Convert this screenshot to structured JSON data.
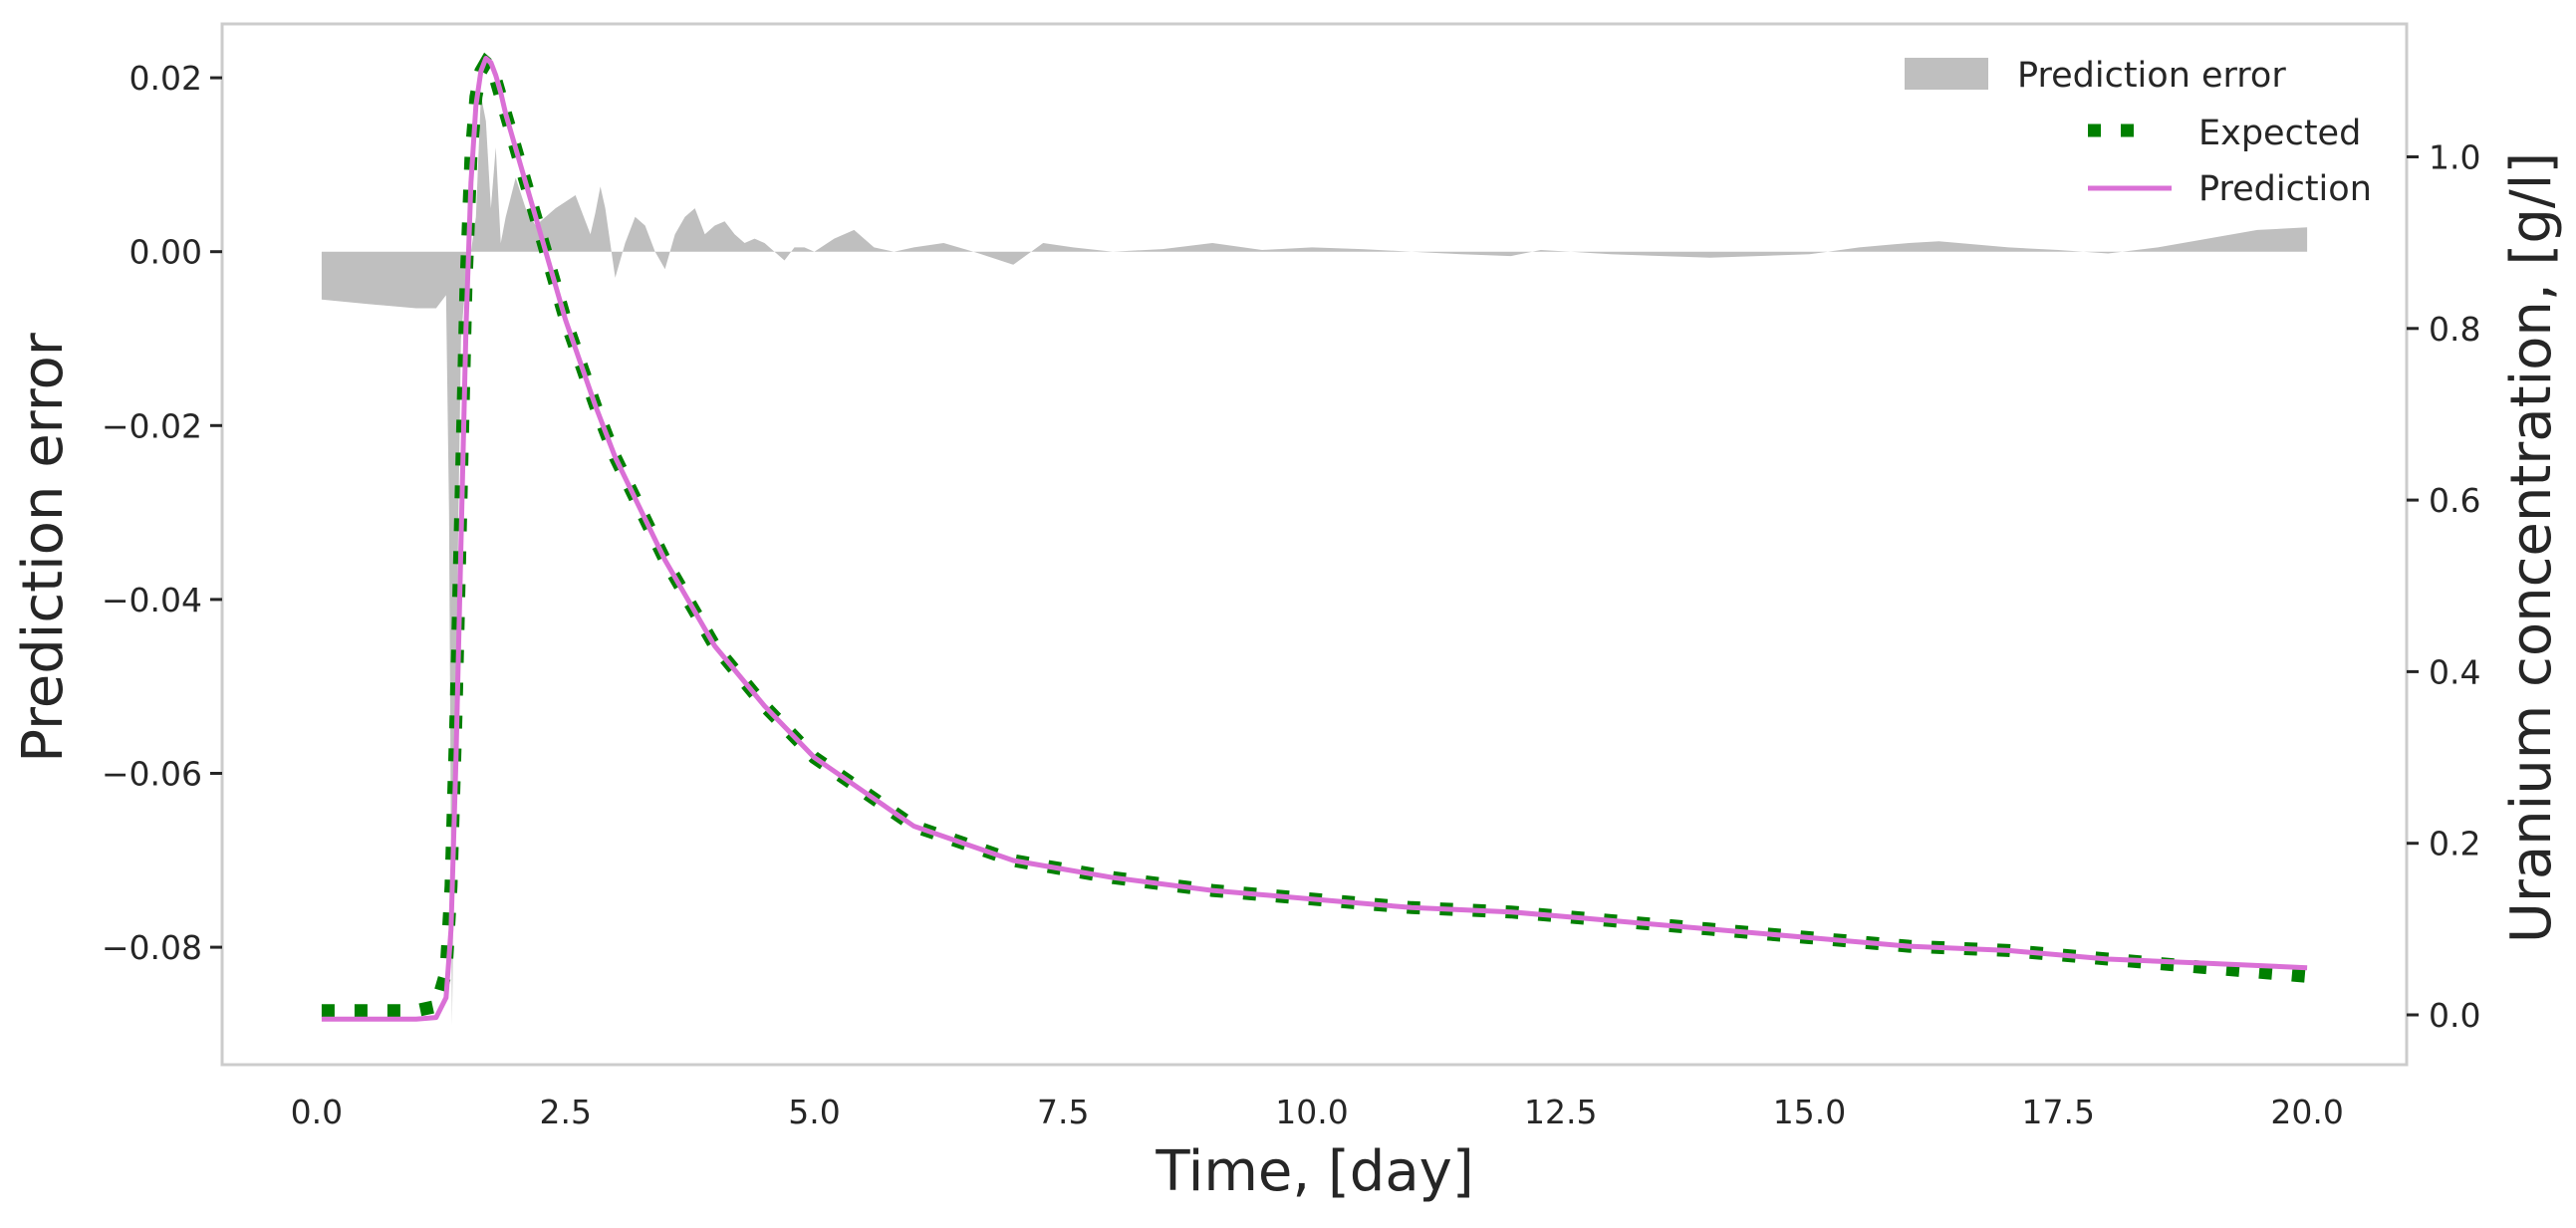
{
  "chart_data": {
    "type": "line",
    "title": "",
    "xlabel": "Time, [day]",
    "ylabel_left": "Prediction error",
    "ylabel_right": "Uranium concentration, [g/l]",
    "xlim": [
      -0.95,
      21.0
    ],
    "ylim_left": [
      -0.0935,
      0.0262
    ],
    "ylim_right": [
      -0.058,
      1.155
    ],
    "grid": false,
    "legend_position": "top-right",
    "x_ticks": [
      "0.0",
      "2.5",
      "5.0",
      "7.5",
      "10.0",
      "12.5",
      "15.0",
      "17.5",
      "20.0"
    ],
    "x_tick_values": [
      0,
      2.5,
      5,
      7.5,
      10,
      12.5,
      15,
      17.5,
      20
    ],
    "y_left_ticks": [
      "−0.08",
      "−0.06",
      "−0.04",
      "−0.02",
      "0.00",
      "0.02"
    ],
    "y_left_tick_values": [
      -0.08,
      -0.06,
      -0.04,
      -0.02,
      0.0,
      0.02
    ],
    "y_right_ticks": [
      "0.0",
      "0.2",
      "0.4",
      "0.6",
      "0.8",
      "1.0"
    ],
    "y_right_tick_values": [
      0.0,
      0.2,
      0.4,
      0.6,
      0.8,
      1.0
    ],
    "legend": [
      {
        "name": "Prediction error",
        "style": "fill",
        "color": "#bfbfbf"
      },
      {
        "name": "Expected",
        "style": "dotted",
        "color": "#008000"
      },
      {
        "name": "Prediction",
        "style": "line",
        "color": "#da70d6"
      }
    ],
    "series": [
      {
        "name": "Prediction error",
        "axis": "left",
        "kind": "area",
        "color": "#bfbfbf",
        "x": [
          0.05,
          0.5,
          1.0,
          1.2,
          1.3,
          1.33,
          1.36,
          1.4,
          1.45,
          1.5,
          1.55,
          1.6,
          1.65,
          1.7,
          1.75,
          1.8,
          1.85,
          1.9,
          2.0,
          2.1,
          2.2,
          2.4,
          2.6,
          2.75,
          2.8,
          2.85,
          2.9,
          3.0,
          3.1,
          3.2,
          3.3,
          3.4,
          3.5,
          3.6,
          3.7,
          3.8,
          3.9,
          4.0,
          4.1,
          4.2,
          4.3,
          4.4,
          4.5,
          4.6,
          4.7,
          4.8,
          4.9,
          5.0,
          5.2,
          5.4,
          5.6,
          5.8,
          6.0,
          6.3,
          6.6,
          7.0,
          7.3,
          7.6,
          8.0,
          8.5,
          9.0,
          9.5,
          10.0,
          10.5,
          11.0,
          11.5,
          12.0,
          12.3,
          12.6,
          13.0,
          14.0,
          15.0,
          15.5,
          16.0,
          16.3,
          16.7,
          17.0,
          17.5,
          18.0,
          18.5,
          19.0,
          19.5,
          20.0
        ],
        "y": [
          -0.0055,
          -0.006,
          -0.0065,
          -0.0065,
          -0.005,
          -0.03,
          -0.089,
          -0.05,
          -0.01,
          -0.003,
          0.0,
          0.004,
          0.018,
          0.015,
          0.005,
          0.012,
          0.001,
          0.004,
          0.0085,
          0.005,
          0.003,
          0.005,
          0.0065,
          0.002,
          0.0045,
          0.0075,
          0.005,
          -0.003,
          0.001,
          0.004,
          0.003,
          0.0,
          -0.002,
          0.002,
          0.004,
          0.005,
          0.002,
          0.003,
          0.0035,
          0.002,
          0.001,
          0.0015,
          0.001,
          0.0,
          -0.001,
          0.0005,
          0.0005,
          0.0,
          0.0015,
          0.0025,
          0.0005,
          0.0,
          0.0005,
          0.001,
          0.0,
          -0.0015,
          0.001,
          0.0005,
          0.0,
          0.0003,
          0.001,
          0.0002,
          0.0005,
          0.0003,
          0.0,
          -0.0003,
          -0.0005,
          0.0002,
          0.0,
          -0.0003,
          -0.0007,
          -0.0003,
          0.0005,
          0.001,
          0.0012,
          0.0008,
          0.0005,
          0.0002,
          -0.0002,
          0.0005,
          0.0015,
          0.0025,
          0.0028
        ]
      },
      {
        "name": "Expected",
        "axis": "right",
        "kind": "dotted-line",
        "color": "#008000",
        "x": [
          0.05,
          0.5,
          1.0,
          1.2,
          1.3,
          1.35,
          1.4,
          1.45,
          1.5,
          1.55,
          1.6,
          1.65,
          1.7,
          1.75,
          1.8,
          1.85,
          1.9,
          2.0,
          2.2,
          2.5,
          2.8,
          3.0,
          3.5,
          4.0,
          4.5,
          5.0,
          5.5,
          6.0,
          6.5,
          7.0,
          7.5,
          8.0,
          9.0,
          10.0,
          11.0,
          12.0,
          13.0,
          14.0,
          15.0,
          16.0,
          17.0,
          18.0,
          19.0,
          20.0
        ],
        "y": [
          0.005,
          0.005,
          0.005,
          0.01,
          0.05,
          0.15,
          0.35,
          0.6,
          0.85,
          1.0,
          1.07,
          1.1,
          1.11,
          1.105,
          1.09,
          1.07,
          1.05,
          1.01,
          0.93,
          0.81,
          0.71,
          0.65,
          0.53,
          0.43,
          0.36,
          0.3,
          0.26,
          0.22,
          0.2,
          0.18,
          0.17,
          0.16,
          0.145,
          0.135,
          0.125,
          0.12,
          0.11,
          0.1,
          0.09,
          0.08,
          0.075,
          0.065,
          0.055,
          0.045
        ]
      },
      {
        "name": "Prediction",
        "axis": "right",
        "kind": "line",
        "color": "#da70d6",
        "x": [
          0.05,
          0.5,
          1.0,
          1.2,
          1.3,
          1.35,
          1.4,
          1.45,
          1.5,
          1.55,
          1.6,
          1.65,
          1.7,
          1.75,
          1.8,
          1.85,
          1.9,
          2.0,
          2.2,
          2.5,
          2.8,
          3.0,
          3.5,
          4.0,
          4.5,
          5.0,
          5.5,
          6.0,
          6.5,
          7.0,
          7.5,
          8.0,
          9.0,
          10.0,
          11.0,
          12.0,
          13.0,
          14.0,
          15.0,
          16.0,
          17.0,
          18.0,
          19.0,
          20.0
        ],
        "y": [
          -0.005,
          -0.005,
          -0.005,
          -0.003,
          0.02,
          0.1,
          0.3,
          0.55,
          0.8,
          0.97,
          1.06,
          1.1,
          1.115,
          1.11,
          1.095,
          1.075,
          1.05,
          1.01,
          0.93,
          0.81,
          0.71,
          0.65,
          0.53,
          0.43,
          0.36,
          0.3,
          0.26,
          0.22,
          0.2,
          0.18,
          0.17,
          0.16,
          0.145,
          0.135,
          0.125,
          0.12,
          0.11,
          0.1,
          0.09,
          0.08,
          0.075,
          0.065,
          0.06,
          0.055
        ]
      }
    ]
  }
}
